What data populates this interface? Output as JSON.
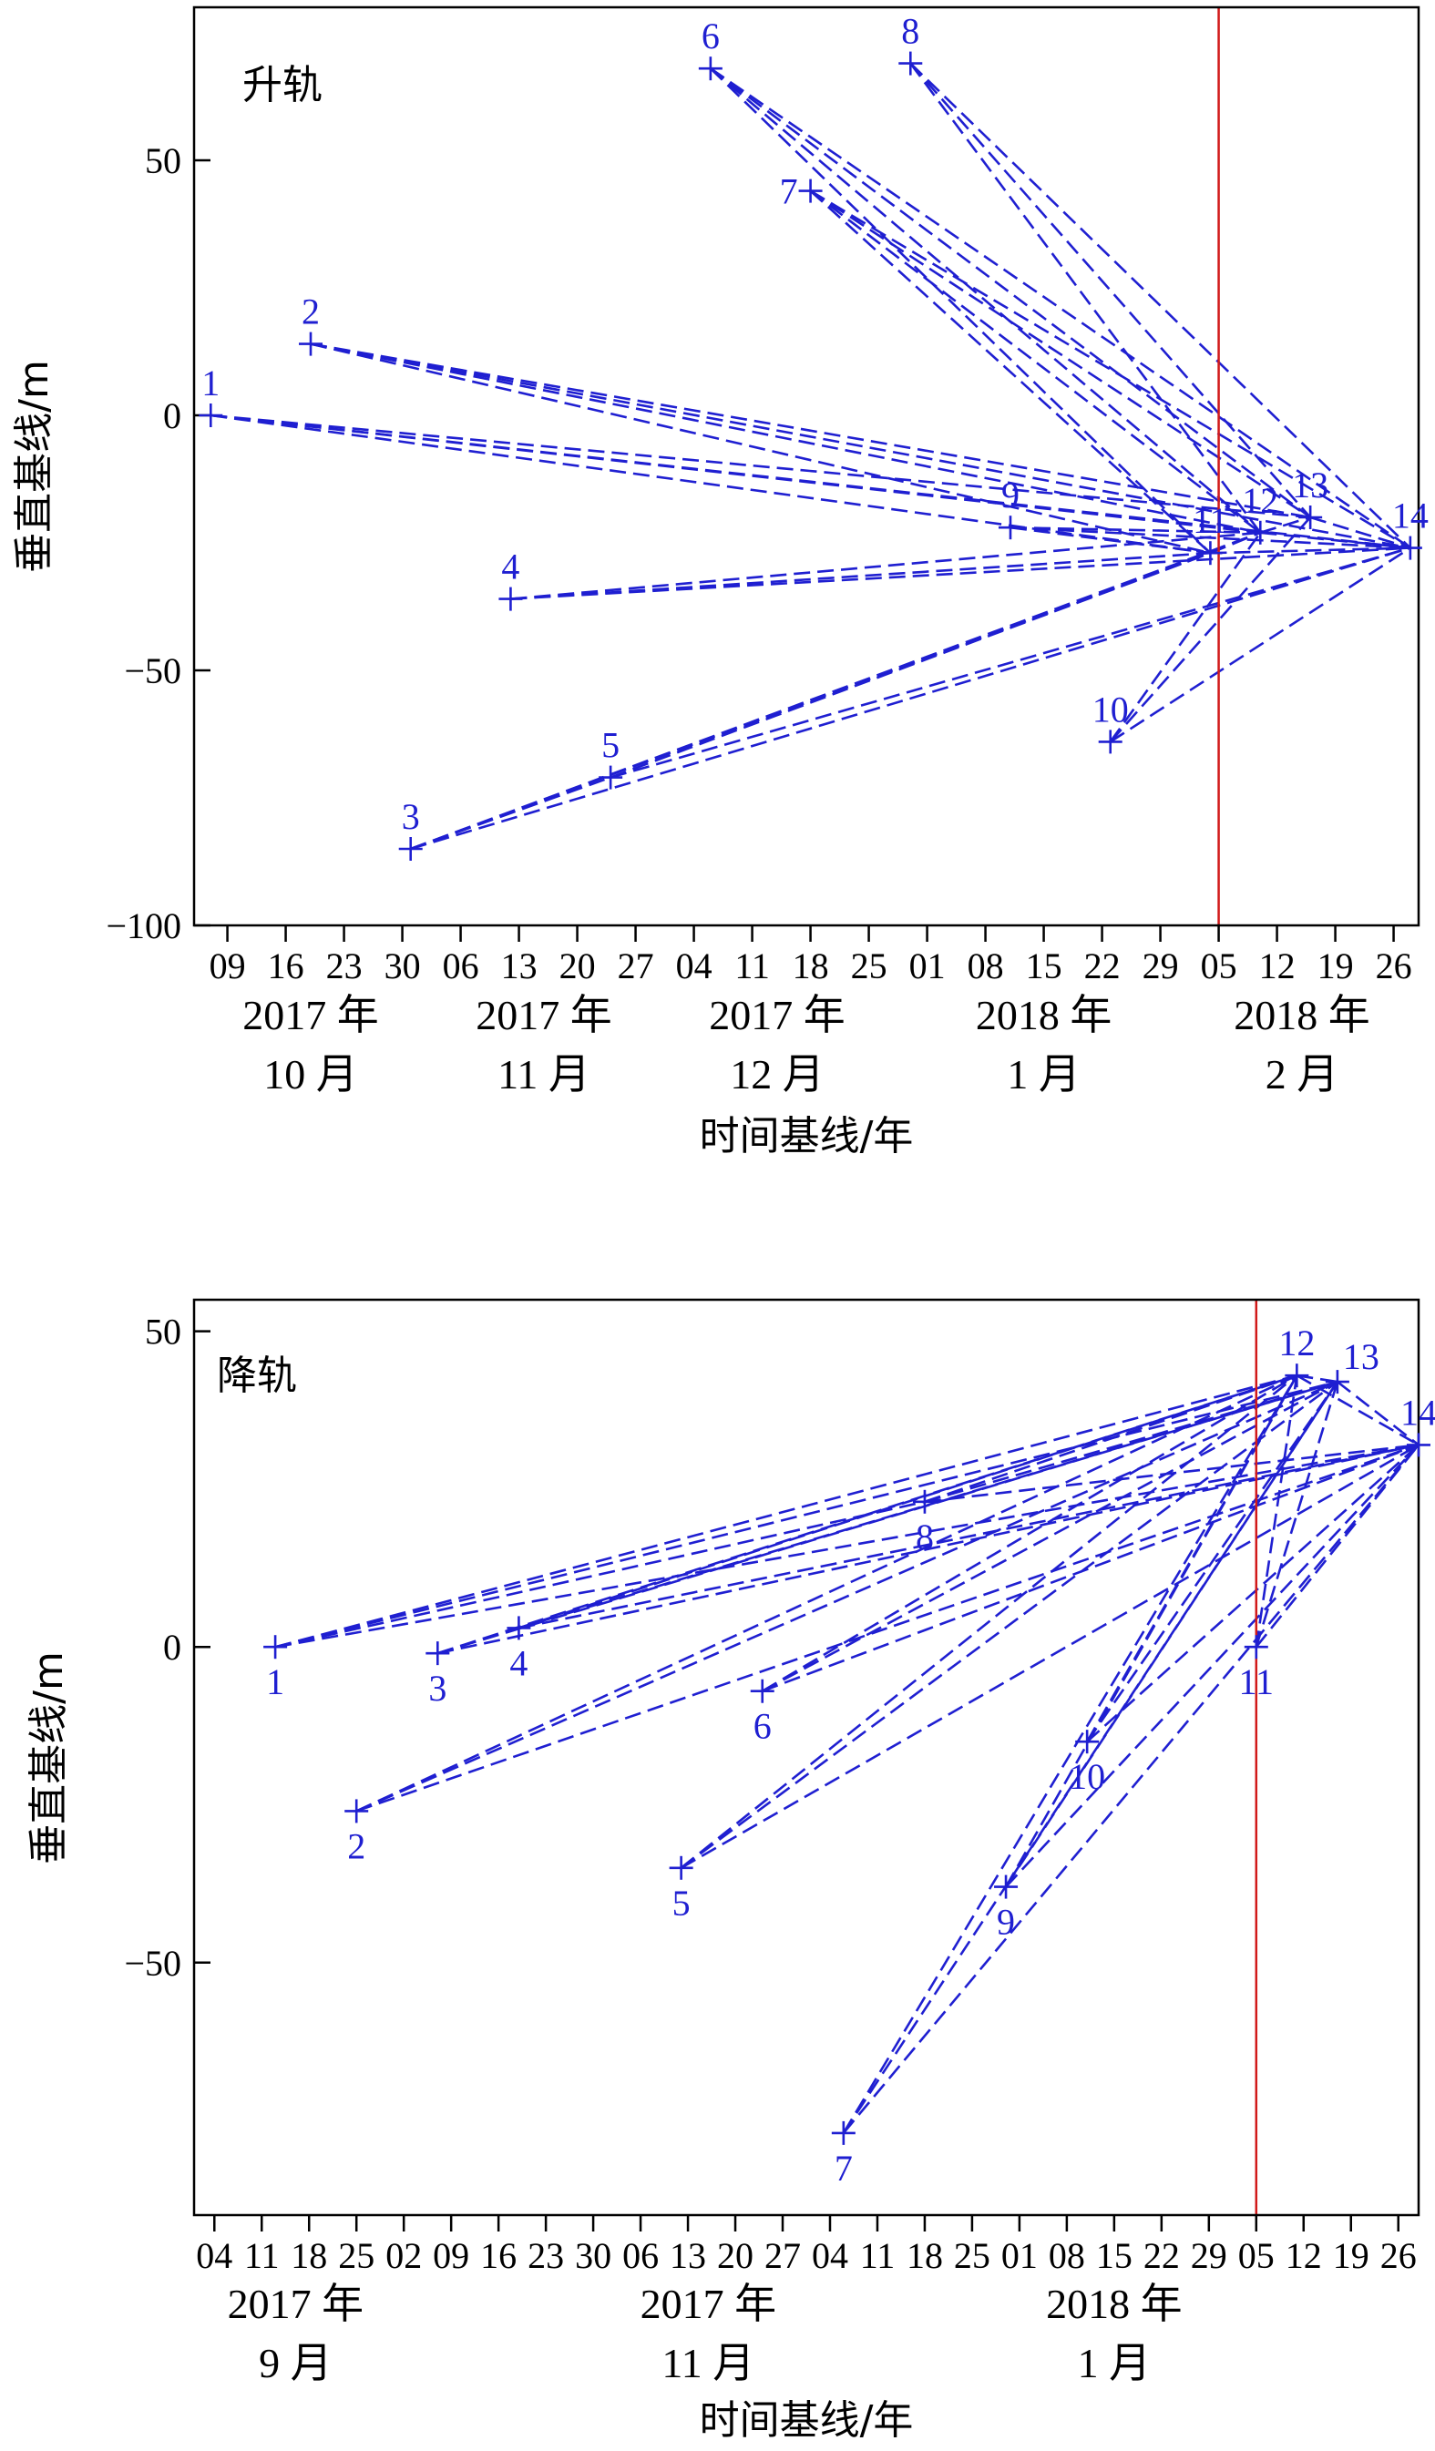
{
  "chart_data": [
    {
      "type": "scatter",
      "panel_label": "升轨",
      "ylabel": "垂直基线/m",
      "xlabel": "时间基线/年",
      "xlim": [
        "2017-10-05",
        "2018-03-01"
      ],
      "ylim": [
        -100,
        80
      ],
      "yticks": [
        -100,
        -50,
        0,
        50
      ],
      "xtick_dates": [
        "2017-10-09",
        "2017-10-16",
        "2017-10-23",
        "2017-10-30",
        "2017-11-06",
        "2017-11-13",
        "2017-11-20",
        "2017-11-27",
        "2017-12-04",
        "2017-12-11",
        "2017-12-18",
        "2017-12-25",
        "2018-01-01",
        "2018-01-08",
        "2018-01-15",
        "2018-01-22",
        "2018-01-29",
        "2018-02-05",
        "2018-02-12",
        "2018-02-19",
        "2018-02-26"
      ],
      "xtick_labels": [
        "09",
        "16",
        "23",
        "30",
        "06",
        "13",
        "20",
        "27",
        "04",
        "11",
        "18",
        "25",
        "01",
        "08",
        "15",
        "22",
        "29",
        "05",
        "12",
        "19",
        "26"
      ],
      "month_labels": [
        {
          "year": "2017 年",
          "month": "10 月",
          "center": "2017-10-19"
        },
        {
          "year": "2017 年",
          "month": "11 月",
          "center": "2017-11-16"
        },
        {
          "year": "2017 年",
          "month": "12 月",
          "center": "2017-12-14"
        },
        {
          "year": "2018 年",
          "month": "1 月",
          "center": "2018-01-15"
        },
        {
          "year": "2018 年",
          "month": "2 月",
          "center": "2018-02-15"
        }
      ],
      "vline_date": "2018-02-05",
      "points": [
        {
          "id": "1",
          "date": "2017-10-07",
          "y": 0
        },
        {
          "id": "2",
          "date": "2017-10-19",
          "y": 14
        },
        {
          "id": "3",
          "date": "2017-10-31",
          "y": -85
        },
        {
          "id": "4",
          "date": "2017-11-12",
          "y": -36
        },
        {
          "id": "5",
          "date": "2017-11-24",
          "y": -71
        },
        {
          "id": "6",
          "date": "2017-12-06",
          "y": 68
        },
        {
          "id": "7",
          "date": "2017-12-18",
          "y": 44
        },
        {
          "id": "8",
          "date": "2017-12-30",
          "y": 69
        },
        {
          "id": "9",
          "date": "2018-01-11",
          "y": -22
        },
        {
          "id": "10",
          "date": "2018-01-23",
          "y": -64
        },
        {
          "id": "11",
          "date": "2018-02-04",
          "y": -27
        },
        {
          "id": "12",
          "date": "2018-02-10",
          "y": -23
        },
        {
          "id": "13",
          "date": "2018-02-16",
          "y": -20
        },
        {
          "id": "14",
          "date": "2018-02-28",
          "y": -26
        }
      ],
      "label_positions": [
        {
          "id": "1",
          "pos": "above"
        },
        {
          "id": "2",
          "pos": "above"
        },
        {
          "id": "3",
          "pos": "above"
        },
        {
          "id": "4",
          "pos": "above"
        },
        {
          "id": "5",
          "pos": "above"
        },
        {
          "id": "6",
          "pos": "above"
        },
        {
          "id": "7",
          "pos": "left"
        },
        {
          "id": "8",
          "pos": "above"
        },
        {
          "id": "9",
          "pos": "above"
        },
        {
          "id": "10",
          "pos": "above"
        },
        {
          "id": "11",
          "pos": "above"
        },
        {
          "id": "12",
          "pos": "above"
        },
        {
          "id": "13",
          "pos": "above"
        },
        {
          "id": "14",
          "pos": "above"
        }
      ],
      "edges": [
        [
          "1",
          "11"
        ],
        [
          "1",
          "12"
        ],
        [
          "1",
          "13"
        ],
        [
          "1",
          "14"
        ],
        [
          "2",
          "11"
        ],
        [
          "2",
          "12"
        ],
        [
          "2",
          "13"
        ],
        [
          "2",
          "14"
        ],
        [
          "3",
          "5"
        ],
        [
          "3",
          "11"
        ],
        [
          "3",
          "12"
        ],
        [
          "3",
          "14"
        ],
        [
          "4",
          "11"
        ],
        [
          "4",
          "12"
        ],
        [
          "4",
          "14"
        ],
        [
          "5",
          "11"
        ],
        [
          "5",
          "14"
        ],
        [
          "6",
          "11"
        ],
        [
          "6",
          "12"
        ],
        [
          "6",
          "13"
        ],
        [
          "6",
          "14"
        ],
        [
          "7",
          "11"
        ],
        [
          "7",
          "12"
        ],
        [
          "7",
          "13"
        ],
        [
          "7",
          "14"
        ],
        [
          "8",
          "12"
        ],
        [
          "8",
          "13"
        ],
        [
          "8",
          "14"
        ],
        [
          "9",
          "11"
        ],
        [
          "9",
          "12"
        ],
        [
          "9",
          "14"
        ],
        [
          "10",
          "12"
        ],
        [
          "10",
          "13"
        ],
        [
          "10",
          "14"
        ],
        [
          "11",
          "12"
        ],
        [
          "11",
          "14"
        ],
        [
          "12",
          "13"
        ],
        [
          "12",
          "14"
        ],
        [
          "13",
          "14"
        ]
      ]
    },
    {
      "type": "scatter",
      "panel_label": "降轨",
      "ylabel": "垂直基线/m",
      "xlabel": "时间基线/年",
      "xlim": [
        "2017-09-01",
        "2018-03-01"
      ],
      "ylim": [
        -90,
        55
      ],
      "yticks": [
        -50,
        0,
        50
      ],
      "xtick_dates": [
        "2017-09-04",
        "2017-09-11",
        "2017-09-18",
        "2017-09-25",
        "2017-10-02",
        "2017-10-09",
        "2017-10-16",
        "2017-10-23",
        "2017-10-30",
        "2017-11-06",
        "2017-11-13",
        "2017-11-20",
        "2017-11-27",
        "2017-12-04",
        "2017-12-11",
        "2017-12-18",
        "2017-12-25",
        "2018-01-01",
        "2018-01-08",
        "2018-01-15",
        "2018-01-22",
        "2018-01-29",
        "2018-02-05",
        "2018-02-12",
        "2018-02-19",
        "2018-02-26"
      ],
      "xtick_labels": [
        "04",
        "11",
        "18",
        "25",
        "02",
        "09",
        "16",
        "23",
        "30",
        "06",
        "13",
        "20",
        "27",
        "04",
        "11",
        "18",
        "25",
        "01",
        "08",
        "15",
        "22",
        "29",
        "05",
        "12",
        "19",
        "26"
      ],
      "month_labels": [
        {
          "year": "2017 年",
          "month": "9 月",
          "center": "2017-09-16"
        },
        {
          "year": "2017 年",
          "month": "11 月",
          "center": "2017-11-16"
        },
        {
          "year": "2018 年",
          "month": "1 月",
          "center": "2018-01-15"
        }
      ],
      "vline_date": "2018-02-05",
      "points": [
        {
          "id": "1",
          "date": "2017-09-13",
          "y": 0
        },
        {
          "id": "2",
          "date": "2017-09-25",
          "y": -26
        },
        {
          "id": "3",
          "date": "2017-10-07",
          "y": -1
        },
        {
          "id": "4",
          "date": "2017-10-19",
          "y": 3
        },
        {
          "id": "5",
          "date": "2017-11-12",
          "y": -35
        },
        {
          "id": "6",
          "date": "2017-11-24",
          "y": -7
        },
        {
          "id": "7",
          "date": "2017-12-06",
          "y": -77
        },
        {
          "id": "8",
          "date": "2017-12-18",
          "y": 23
        },
        {
          "id": "9",
          "date": "2017-12-30",
          "y": -38
        },
        {
          "id": "10",
          "date": "2018-01-11",
          "y": -15
        },
        {
          "id": "11",
          "date": "2018-02-05",
          "y": 0
        },
        {
          "id": "12",
          "date": "2018-02-11",
          "y": 43
        },
        {
          "id": "13",
          "date": "2018-02-17",
          "y": 42
        },
        {
          "id": "14",
          "date": "2018-03-01",
          "y": 32
        }
      ],
      "label_positions": [
        {
          "id": "1",
          "pos": "below"
        },
        {
          "id": "2",
          "pos": "below"
        },
        {
          "id": "3",
          "pos": "below"
        },
        {
          "id": "4",
          "pos": "below"
        },
        {
          "id": "5",
          "pos": "below"
        },
        {
          "id": "6",
          "pos": "below"
        },
        {
          "id": "7",
          "pos": "below"
        },
        {
          "id": "8",
          "pos": "below"
        },
        {
          "id": "9",
          "pos": "below"
        },
        {
          "id": "10",
          "pos": "below"
        },
        {
          "id": "11",
          "pos": "below"
        },
        {
          "id": "12",
          "pos": "above"
        },
        {
          "id": "13",
          "pos": "above-right"
        },
        {
          "id": "14",
          "pos": "above"
        }
      ],
      "edges": [
        [
          "1",
          "12"
        ],
        [
          "1",
          "13"
        ],
        [
          "1",
          "14"
        ],
        [
          "1",
          "8"
        ],
        [
          "2",
          "12"
        ],
        [
          "2",
          "13"
        ],
        [
          "2",
          "14"
        ],
        [
          "3",
          "12"
        ],
        [
          "3",
          "13"
        ],
        [
          "3",
          "14"
        ],
        [
          "4",
          "12"
        ],
        [
          "4",
          "13"
        ],
        [
          "4",
          "14"
        ],
        [
          "5",
          "12"
        ],
        [
          "5",
          "13"
        ],
        [
          "5",
          "14"
        ],
        [
          "6",
          "12"
        ],
        [
          "6",
          "13"
        ],
        [
          "6",
          "14"
        ],
        [
          "7",
          "12"
        ],
        [
          "7",
          "13"
        ],
        [
          "7",
          "14"
        ],
        [
          "8",
          "12"
        ],
        [
          "8",
          "13"
        ],
        [
          "8",
          "14"
        ],
        [
          "9",
          "12"
        ],
        [
          "9",
          "13"
        ],
        [
          "9",
          "14"
        ],
        [
          "10",
          "12"
        ],
        [
          "10",
          "13"
        ],
        [
          "10",
          "14"
        ],
        [
          "11",
          "12"
        ],
        [
          "11",
          "13"
        ],
        [
          "11",
          "14"
        ],
        [
          "12",
          "13"
        ],
        [
          "12",
          "14"
        ],
        [
          "13",
          "14"
        ]
      ]
    }
  ]
}
